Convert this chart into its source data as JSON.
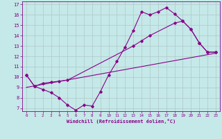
{
  "xlabel": "Windchill (Refroidissement éolien,°C)",
  "bg_color": "#c5e8e8",
  "line_color": "#880088",
  "grid_color": "#b0c8c8",
  "xlim": [
    -0.5,
    23.5
  ],
  "ylim": [
    6.7,
    17.3
  ],
  "xticks": [
    0,
    1,
    2,
    3,
    4,
    5,
    6,
    7,
    8,
    9,
    10,
    11,
    12,
    13,
    14,
    15,
    16,
    17,
    18,
    19,
    20,
    21,
    22,
    23
  ],
  "yticks": [
    7,
    8,
    9,
    10,
    11,
    12,
    13,
    14,
    15,
    16,
    17
  ],
  "line1_x": [
    0,
    1,
    2,
    3,
    4,
    5,
    6,
    7,
    8,
    9,
    10,
    11,
    12,
    13,
    14,
    15,
    16,
    17,
    18,
    19,
    20,
    21,
    22,
    23
  ],
  "line1_y": [
    10.2,
    9.1,
    8.8,
    8.5,
    8.0,
    7.3,
    6.8,
    7.3,
    7.2,
    8.6,
    10.2,
    11.5,
    12.9,
    14.5,
    16.3,
    16.0,
    16.3,
    16.7,
    16.1,
    15.4,
    14.6,
    13.3,
    12.4,
    12.4
  ],
  "line2_x": [
    0,
    1,
    2,
    3,
    4,
    5,
    13,
    14,
    15,
    18,
    19,
    20,
    21,
    22,
    23
  ],
  "line2_y": [
    10.2,
    9.1,
    9.4,
    9.5,
    9.6,
    9.7,
    13.0,
    13.5,
    14.0,
    15.2,
    15.4,
    14.6,
    13.3,
    12.4,
    12.4
  ],
  "line3_x": [
    0,
    23
  ],
  "line3_y": [
    9.0,
    12.3
  ]
}
